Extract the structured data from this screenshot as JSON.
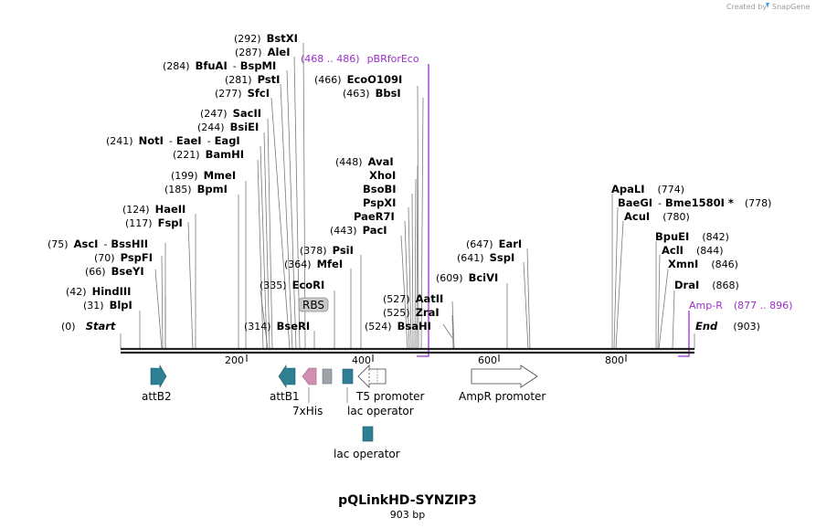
{
  "credit": {
    "text": "Created by",
    "brand": "SnapGene"
  },
  "title": "pQLinkHD-SYNZIP3",
  "length_label": "903 bp",
  "axis_ticks": [
    "200",
    "400",
    "600",
    "800"
  ],
  "colors": {
    "teal": "#2e7f93",
    "pink": "#d38fb3",
    "gray": "#9da3a8",
    "purple": "#9b2fce",
    "line": "#7a7a7a"
  },
  "enzymes": {
    "start": {
      "pos": "(0)",
      "name": "Start"
    },
    "end": {
      "name": "End",
      "pos": "(903)"
    },
    "bstxi": {
      "pos": "(292)",
      "name": "BstXI"
    },
    "alei": {
      "pos": "(287)",
      "name": "AleI"
    },
    "bfuai": {
      "pos": "(284)",
      "name": "BfuAI",
      "sep": "-",
      "name2": "BspMI"
    },
    "psti": {
      "pos": "(281)",
      "name": "PstI"
    },
    "sfci": {
      "pos": "(277)",
      "name": "SfcI"
    },
    "sacii": {
      "pos": "(247)",
      "name": "SacII"
    },
    "bsiei": {
      "pos": "(244)",
      "name": "BsiEI"
    },
    "noti": {
      "pos": "(241)",
      "name": "NotI",
      "sep": "-",
      "name2": "EaeI",
      "sep2": "-",
      "name3": "EagI"
    },
    "bamhi": {
      "pos": "(221)",
      "name": "BamHI"
    },
    "mmei": {
      "pos": "(199)",
      "name": "MmeI"
    },
    "bpmi": {
      "pos": "(185)",
      "name": "BpmI"
    },
    "haeii": {
      "pos": "(124)",
      "name": "HaeII"
    },
    "fspi": {
      "pos": "(117)",
      "name": "FspI"
    },
    "asci": {
      "pos": "(75)",
      "name": "AscI",
      "sep": "-",
      "name2": "BssHII"
    },
    "pspfi": {
      "pos": "(70)",
      "name": "PspFI"
    },
    "bseyi": {
      "pos": "(66)",
      "name": "BseYI"
    },
    "hindiii": {
      "pos": "(42)",
      "name": "HindIII"
    },
    "blpi": {
      "pos": "(31)",
      "name": "BlpI"
    },
    "psii": {
      "pos": "(378)",
      "name": "PsiI"
    },
    "mfei": {
      "pos": "(364)",
      "name": "MfeI"
    },
    "ecori": {
      "pos": "(335)",
      "name": "EcoRI"
    },
    "bseri": {
      "pos": "(314)",
      "name": "BseRI"
    },
    "ecoo109i": {
      "pos": "(466)",
      "name": "EcoO109I"
    },
    "bbsi": {
      "pos": "(463)",
      "name": "BbsI"
    },
    "avai": {
      "pos": "(448)",
      "name": "AvaI"
    },
    "xhoi": {
      "name": "XhoI"
    },
    "bsobi": {
      "name": "BsoBI"
    },
    "pspxi": {
      "name": "PspXI"
    },
    "paer7i": {
      "name": "PaeR7I"
    },
    "paci": {
      "pos": "(443)",
      "name": "PacI"
    },
    "aatii": {
      "pos": "(527)",
      "name": "AatII"
    },
    "zrai": {
      "pos": "(525)",
      "name": "ZraI"
    },
    "bsahi": {
      "pos": "(524)",
      "name": "BsaHI"
    },
    "eari": {
      "pos": "(647)",
      "name": "EarI"
    },
    "sspi": {
      "pos": "(641)",
      "name": "SspI"
    },
    "bcivi": {
      "pos": "(609)",
      "name": "BciVI"
    },
    "apali": {
      "name": "ApaLI",
      "pos": "(774)"
    },
    "baegi": {
      "name": "BaeGI",
      "sep": "-",
      "name2": "Bme1580I *",
      "pos": "(778)"
    },
    "acui": {
      "name": "AcuI",
      "pos": "(780)"
    },
    "bpuei": {
      "name": "BpuEI",
      "pos": "(842)"
    },
    "acli": {
      "name": "AclI",
      "pos": "(844)"
    },
    "xmni": {
      "name": "XmnI",
      "pos": "(846)"
    },
    "drai": {
      "name": "DraI",
      "pos": "(868)"
    }
  },
  "primer_features": {
    "pbr": {
      "range": "(468 .. 486)",
      "name": "pBRforEco"
    },
    "ampr": {
      "name": "Amp-R",
      "range": "(877 .. 896)"
    }
  },
  "features": {
    "rbs": "RBS",
    "attb2": "attB2",
    "attb1": "attB1",
    "his": "7xHis",
    "t5": "T5 promoter",
    "lacop1": "lac operator",
    "lacop2": "lac operator",
    "amprp": "AmpR promoter"
  }
}
